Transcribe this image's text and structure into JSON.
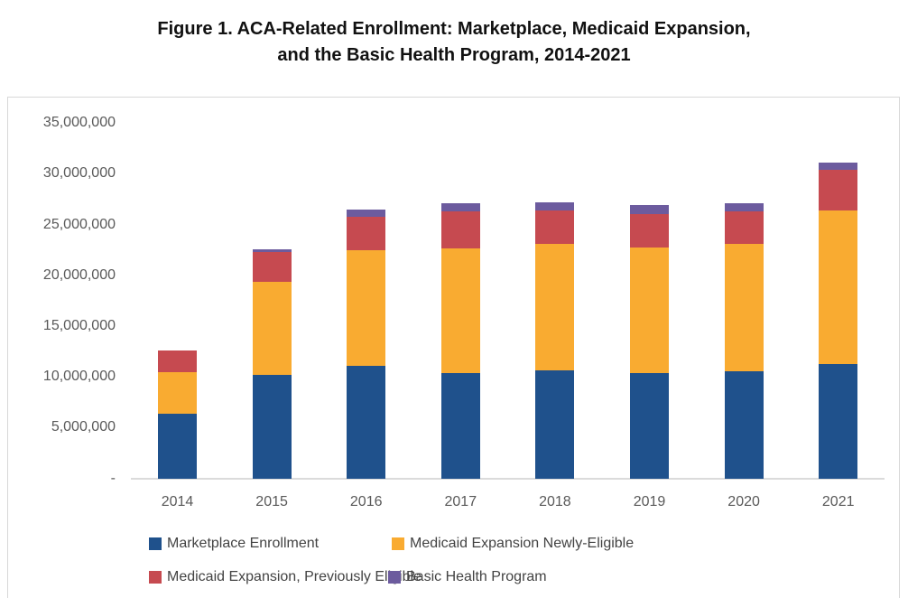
{
  "title": {
    "line1": "Figure 1. ACA-Related Enrollment: Marketplace, Medicaid Expansion,",
    "line2": "and the Basic Health Program, 2014-2021"
  },
  "chart_data": {
    "type": "bar",
    "stacked": true,
    "title": "Figure 1. ACA-Related Enrollment: Marketplace, Medicaid Expansion, and the Basic Health Program, 2014-2021",
    "xlabel": "",
    "ylabel": "",
    "categories": [
      "2014",
      "2015",
      "2016",
      "2017",
      "2018",
      "2019",
      "2020",
      "2021"
    ],
    "series": [
      {
        "name": "Marketplace Enrollment",
        "color": "#1F518C",
        "values": [
          6400000,
          10200000,
          11100000,
          10400000,
          10700000,
          10400000,
          10600000,
          11300000
        ]
      },
      {
        "name": "Medicaid Expansion Newly-Eligible",
        "color": "#F9AB31",
        "values": [
          4100000,
          9200000,
          11400000,
          12300000,
          12400000,
          12400000,
          12500000,
          15100000
        ]
      },
      {
        "name": "Medicaid Expansion, Previously Eligible",
        "color": "#C64A50",
        "values": [
          2100000,
          2900000,
          3300000,
          3600000,
          3300000,
          3300000,
          3200000,
          4000000
        ]
      },
      {
        "name": "Basic Health Program",
        "color": "#6C5B9E",
        "values": [
          0,
          300000,
          700000,
          800000,
          800000,
          900000,
          800000,
          700000
        ]
      }
    ],
    "ylim": [
      0,
      35000000
    ],
    "ytick_step": 5000000,
    "ytick_labels": [
      "35,000,000",
      "30,000,000",
      "25,000,000",
      "20,000,000",
      "15,000,000",
      "10,000,000",
      "5,000,000",
      "-"
    ],
    "grid": false,
    "legend_position": "bottom",
    "legend_rows": [
      [
        "Marketplace Enrollment",
        "Medicaid Expansion Newly-Eligible"
      ],
      [
        "Medicaid Expansion, Previously Eligible",
        "Basic Health Program"
      ]
    ]
  }
}
